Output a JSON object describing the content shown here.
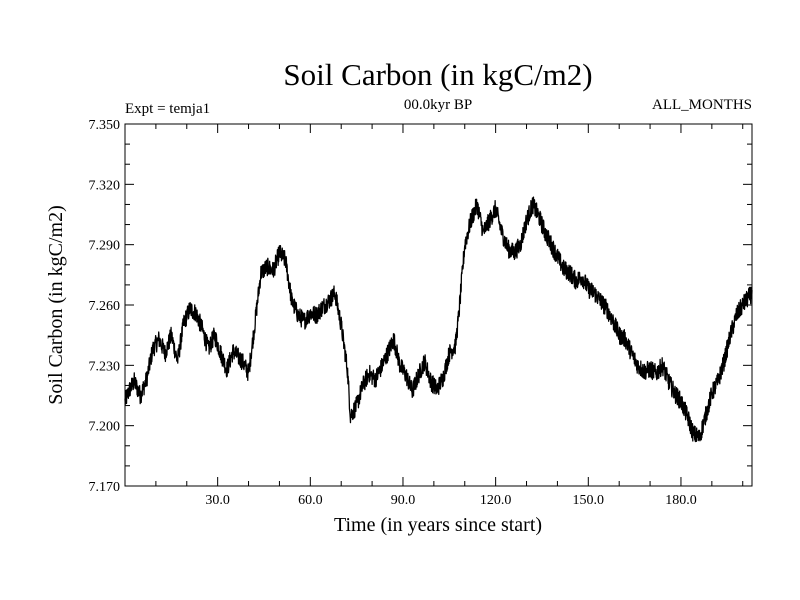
{
  "chart_data": {
    "type": "line",
    "title": "Soil Carbon (in kgC/m2)",
    "subtitle": "00.0kyr BP",
    "left_note": "Expt = temja1",
    "right_note": "ALL_MONTHS",
    "xlabel": "Time (in years since start)",
    "ylabel": "Soil Carbon (in kgC/m2)",
    "xlim": [
      0,
      203
    ],
    "ylim": [
      7.17,
      7.35
    ],
    "x_ticks": [
      30,
      60,
      90,
      120,
      150,
      180
    ],
    "x_tick_labels": [
      "30.0",
      "60.0",
      "90.0",
      "120.0",
      "150.0",
      "180.0"
    ],
    "y_ticks": [
      7.17,
      7.2,
      7.23,
      7.26,
      7.29,
      7.32,
      7.35
    ],
    "y_tick_labels": [
      "7.170",
      "7.200",
      "7.230",
      "7.260",
      "7.290",
      "7.320",
      "7.350"
    ],
    "line_color": "#000000",
    "noise_amplitude": 0.0045,
    "samples_per_year": 12,
    "series": [
      {
        "name": "soil_carbon",
        "x": [
          0,
          1.5,
          3,
          5,
          7,
          9,
          11,
          13,
          15,
          17,
          19,
          21,
          23,
          25,
          27,
          29,
          31,
          33,
          35,
          38,
          40,
          42,
          44,
          46,
          48,
          50,
          52,
          54,
          56,
          58,
          60,
          62,
          64,
          66,
          68,
          70,
          72,
          73,
          75,
          77,
          79,
          81,
          83,
          85,
          87,
          89,
          91,
          93,
          95,
          97,
          99,
          101,
          103,
          105,
          107,
          108,
          110,
          112,
          114,
          116,
          118,
          120,
          122,
          124,
          126,
          128,
          130,
          132,
          134,
          136,
          138,
          140,
          142,
          144,
          146,
          148,
          150,
          152,
          154,
          156,
          158,
          160,
          162,
          164,
          166,
          168,
          170,
          172,
          174,
          176,
          178,
          180,
          182,
          184,
          186,
          188,
          190,
          192,
          194,
          196,
          198,
          200,
          203
        ],
        "values": [
          7.212,
          7.218,
          7.222,
          7.215,
          7.223,
          7.238,
          7.243,
          7.236,
          7.245,
          7.232,
          7.251,
          7.258,
          7.256,
          7.248,
          7.238,
          7.245,
          7.236,
          7.228,
          7.237,
          7.232,
          7.226,
          7.25,
          7.276,
          7.279,
          7.277,
          7.286,
          7.282,
          7.262,
          7.255,
          7.252,
          7.256,
          7.255,
          7.259,
          7.262,
          7.266,
          7.25,
          7.228,
          7.205,
          7.21,
          7.22,
          7.226,
          7.223,
          7.229,
          7.236,
          7.243,
          7.23,
          7.225,
          7.217,
          7.225,
          7.232,
          7.222,
          7.218,
          7.224,
          7.236,
          7.24,
          7.254,
          7.29,
          7.302,
          7.31,
          7.296,
          7.302,
          7.308,
          7.296,
          7.288,
          7.286,
          7.29,
          7.302,
          7.31,
          7.304,
          7.296,
          7.29,
          7.284,
          7.278,
          7.276,
          7.272,
          7.274,
          7.268,
          7.266,
          7.262,
          7.258,
          7.252,
          7.245,
          7.243,
          7.236,
          7.23,
          7.227,
          7.228,
          7.226,
          7.23,
          7.222,
          7.216,
          7.212,
          7.205,
          7.196,
          7.194,
          7.205,
          7.216,
          7.222,
          7.232,
          7.245,
          7.255,
          7.26,
          7.266
        ]
      }
    ]
  }
}
